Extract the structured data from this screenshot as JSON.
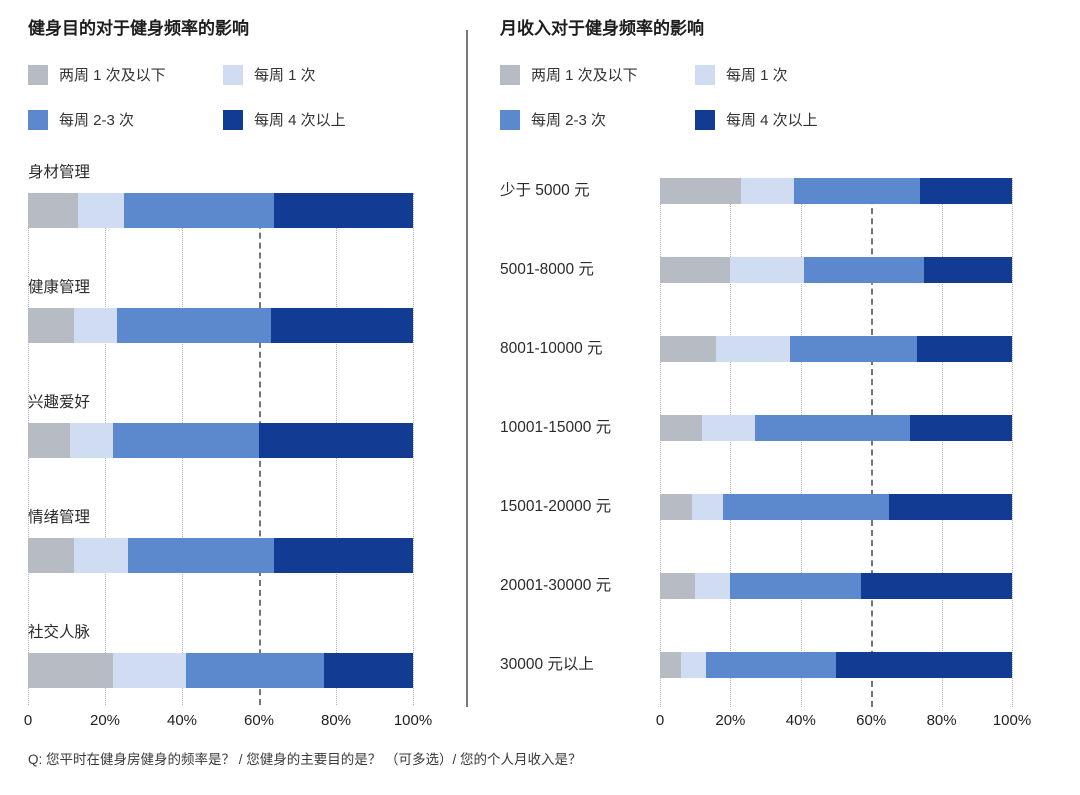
{
  "page": {
    "background": "#ffffff",
    "footnote": "Q: 您平时在健身房健身的频率是？ / 您健身的主要目的是？ （可多选）/ 您的个人月收入是？"
  },
  "colors": {
    "biweekly_or_less": "#b6bbc4",
    "once_a_week": "#cfdcf2",
    "two_three_per_week": "#5c89ce",
    "four_plus_per_week": "#123b94",
    "gridline": "#aeb1b7",
    "gridline_major": "#72757b",
    "divider": "#75787c"
  },
  "chart_data": [
    {
      "type": "bar",
      "orientation": "horizontal",
      "stacked": true,
      "title": "健身目的对于健身频率的影响",
      "unit": "%",
      "xlim": [
        0,
        100
      ],
      "x_ticks": [
        "0",
        "20%",
        "40%",
        "60%",
        "80%",
        "100%"
      ],
      "grid": "vertical dotted gridlines at 20% steps, darker dashed line at 60%",
      "legend_position": "top",
      "categories": [
        "身材管理",
        "健康管理",
        "兴趣爱好",
        "情绪管理",
        "社交人脉"
      ],
      "series": [
        {
          "name": "两周 1 次及以下",
          "color": "#b6bbc4",
          "values": [
            13,
            12,
            11,
            12,
            22
          ]
        },
        {
          "name": "每周 1 次",
          "color": "#cfdcf2",
          "values": [
            12,
            11,
            11,
            14,
            19
          ]
        },
        {
          "name": "每周 2-3 次",
          "color": "#5c89ce",
          "values": [
            39,
            40,
            38,
            38,
            36
          ]
        },
        {
          "name": "每周 4 次以上",
          "color": "#123b94",
          "values": [
            36,
            37,
            40,
            36,
            23
          ]
        }
      ]
    },
    {
      "type": "bar",
      "orientation": "horizontal",
      "stacked": true,
      "title": "月收入对于健身频率的影响",
      "unit": "%",
      "xlim": [
        0,
        100
      ],
      "x_ticks": [
        "0",
        "20%",
        "40%",
        "60%",
        "80%",
        "100%"
      ],
      "grid": "vertical dotted gridlines at 20% steps, darker dashed line at 60%",
      "legend_position": "top",
      "categories": [
        "少于 5000 元",
        "5001-8000 元",
        "8001-10000 元",
        "10001-15000 元",
        "15001-20000 元",
        "20001-30000 元",
        "30000 元以上"
      ],
      "series": [
        {
          "name": "两周 1 次及以下",
          "color": "#b6bbc4",
          "values": [
            23,
            20,
            16,
            12,
            9,
            10,
            6
          ]
        },
        {
          "name": "每周 1 次",
          "color": "#cfdcf2",
          "values": [
            15,
            21,
            21,
            15,
            9,
            10,
            7
          ]
        },
        {
          "name": "每周 2-3 次",
          "color": "#5c89ce",
          "values": [
            36,
            34,
            36,
            44,
            47,
            37,
            37
          ]
        },
        {
          "name": "每周 4 次以上",
          "color": "#123b94",
          "values": [
            26,
            25,
            27,
            29,
            35,
            43,
            50
          ]
        }
      ]
    }
  ]
}
